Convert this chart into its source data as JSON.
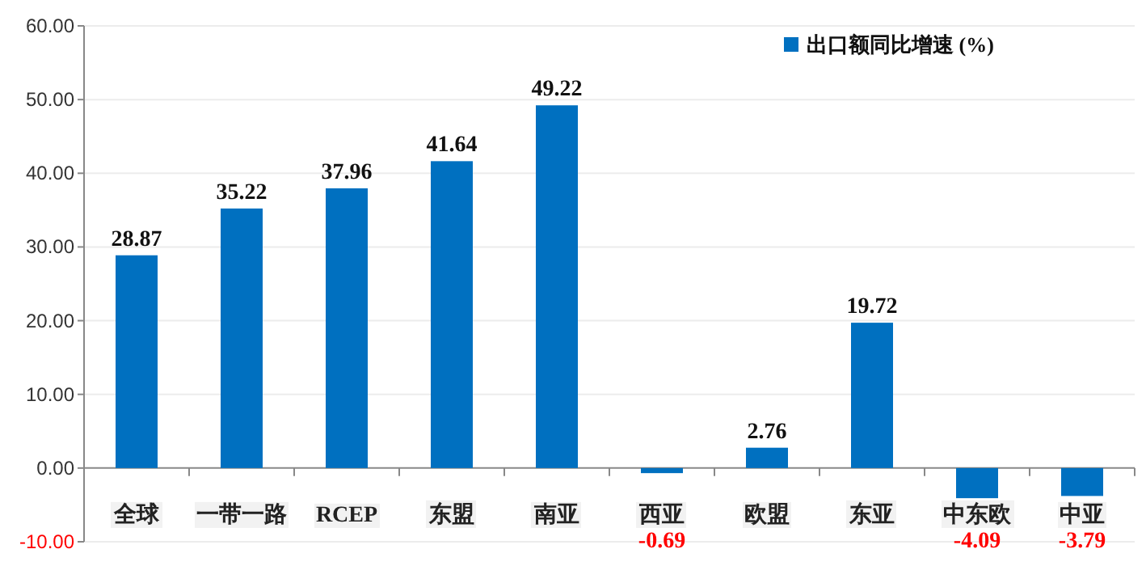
{
  "chart_data": {
    "type": "bar",
    "categories": [
      "全球",
      "一带一路",
      "RCEP",
      "东盟",
      "南亚",
      "西亚",
      "欧盟",
      "东亚",
      "中东欧",
      "中亚"
    ],
    "series": [
      {
        "name": "出口额同比增速 (%)",
        "color": "#0070c0",
        "values": [
          28.87,
          35.22,
          37.96,
          41.64,
          49.22,
          -0.69,
          2.76,
          19.72,
          -4.09,
          -3.79
        ],
        "value_labels": [
          "28.87",
          "35.22",
          "37.96",
          "41.64",
          "49.22",
          "-0.69",
          "2.76",
          "19.72",
          "-4.09",
          "-3.79"
        ]
      }
    ],
    "ylim": [
      -10,
      60
    ],
    "yticks": [
      {
        "value": -10,
        "label": "-10.00"
      },
      {
        "value": 0,
        "label": "0.00"
      },
      {
        "value": 10,
        "label": "10.00"
      },
      {
        "value": 20,
        "label": "20.00"
      },
      {
        "value": 30,
        "label": "30.00"
      },
      {
        "value": 40,
        "label": "40.00"
      },
      {
        "value": 50,
        "label": "50.00"
      },
      {
        "value": 60,
        "label": "60.00"
      }
    ],
    "grid": "y",
    "legend": "top right"
  }
}
